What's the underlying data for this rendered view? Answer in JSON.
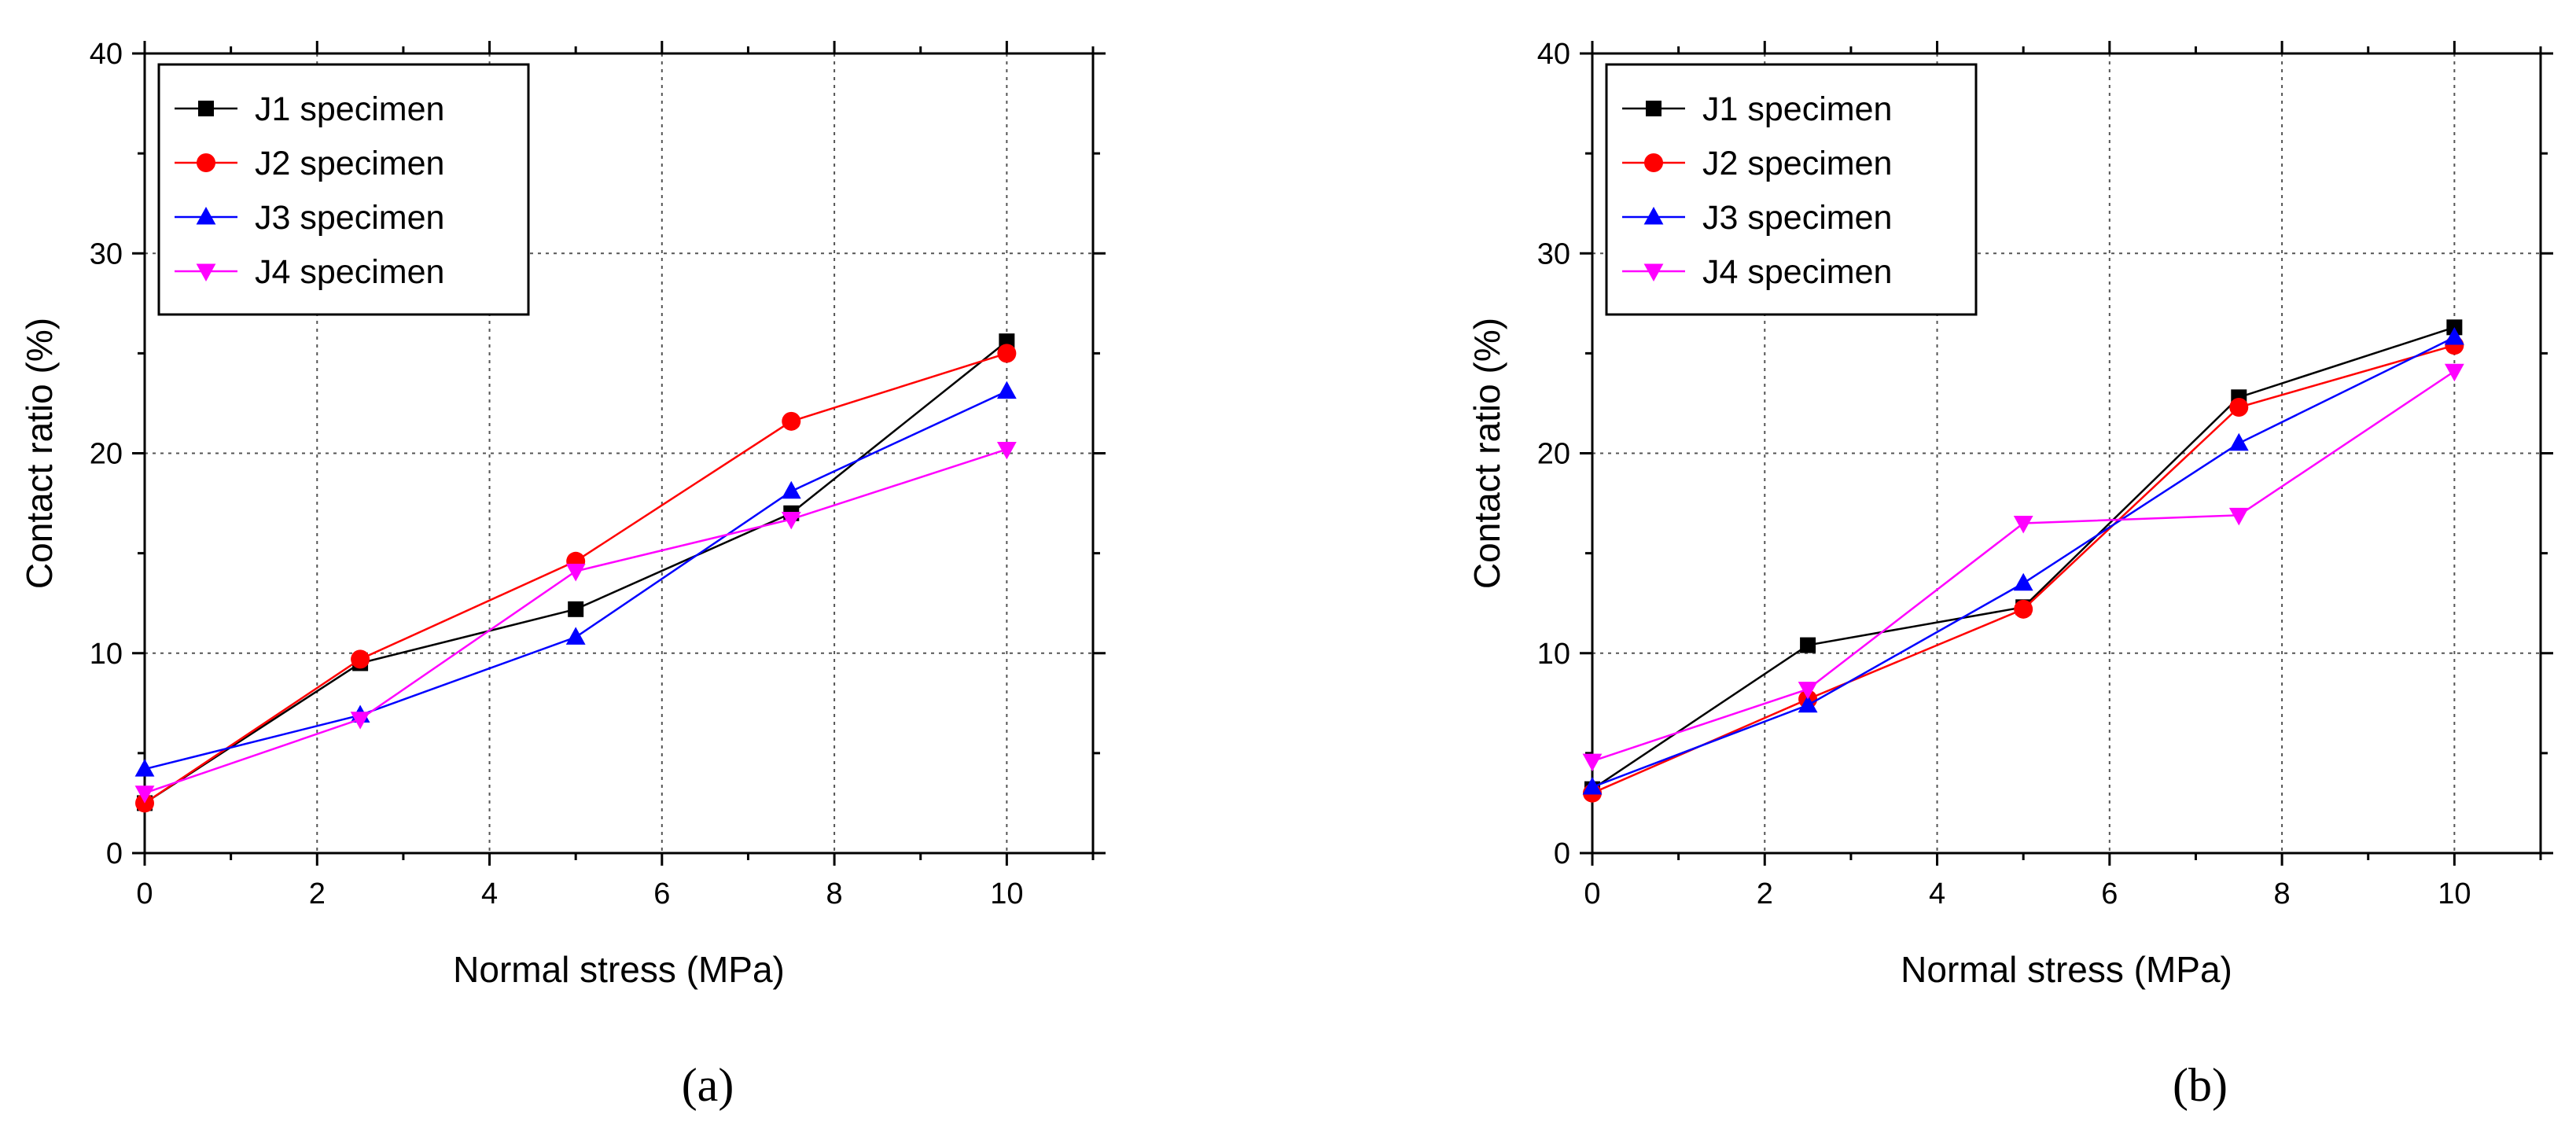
{
  "chart_data": [
    {
      "type": "line",
      "panel_label": "(a)",
      "xlabel": "Normal stress (MPa)",
      "ylabel": "Contact ratio (%)",
      "xlim": [
        0,
        11
      ],
      "ylim": [
        0,
        40
      ],
      "xticks": [
        0,
        2,
        4,
        6,
        8,
        10
      ],
      "yticks": [
        0,
        10,
        20,
        30,
        40
      ],
      "grid": true,
      "legend_position": "top-left",
      "x": [
        0,
        2.5,
        5,
        7.5,
        10
      ],
      "series": [
        {
          "name": "J1 specimen",
          "values": [
            2.5,
            9.5,
            12.2,
            17.0,
            25.6
          ],
          "color": "#000000",
          "marker": "square"
        },
        {
          "name": "J2 specimen",
          "values": [
            2.5,
            9.7,
            14.6,
            21.6,
            25.0
          ],
          "color": "#ff0000",
          "marker": "circle"
        },
        {
          "name": "J3 specimen",
          "values": [
            4.2,
            6.9,
            10.8,
            18.1,
            23.1
          ],
          "color": "#0000ff",
          "marker": "triangle-up"
        },
        {
          "name": "J4 specimen",
          "values": [
            3.0,
            6.7,
            14.1,
            16.7,
            20.2
          ],
          "color": "#ff00ff",
          "marker": "triangle-down"
        }
      ]
    },
    {
      "type": "line",
      "panel_label": "(b)",
      "xlabel": "Normal stress (MPa)",
      "ylabel": "Contact ratio (%)",
      "xlim": [
        0,
        11
      ],
      "ylim": [
        0,
        40
      ],
      "xticks": [
        0,
        2,
        4,
        6,
        8,
        10
      ],
      "yticks": [
        0,
        10,
        20,
        30,
        40
      ],
      "grid": true,
      "legend_position": "top-left",
      "x": [
        0,
        2.5,
        5,
        7.5,
        10
      ],
      "series": [
        {
          "name": "J1 specimen",
          "values": [
            3.2,
            10.4,
            12.3,
            22.8,
            26.3
          ],
          "color": "#000000",
          "marker": "square"
        },
        {
          "name": "J2 specimen",
          "values": [
            3.0,
            7.7,
            12.2,
            22.3,
            25.4
          ],
          "color": "#ff0000",
          "marker": "circle"
        },
        {
          "name": "J3 specimen",
          "values": [
            3.3,
            7.4,
            13.5,
            20.5,
            25.8
          ],
          "color": "#0000ff",
          "marker": "triangle-up"
        },
        {
          "name": "J4 specimen",
          "values": [
            4.6,
            8.2,
            16.5,
            16.9,
            24.1
          ],
          "color": "#ff00ff",
          "marker": "triangle-down"
        }
      ]
    }
  ]
}
